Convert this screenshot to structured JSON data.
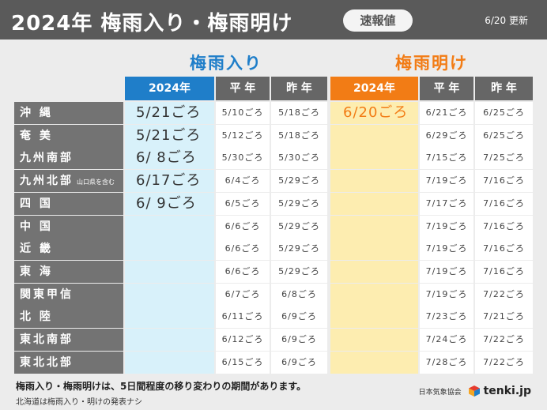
{
  "header": {
    "title": "2024年 梅雨入り・梅雨明け",
    "badge": "速報値",
    "updated": "6/20 更新"
  },
  "groups": {
    "iri": {
      "title": "梅雨入り",
      "col_current": "2024年",
      "col_normal": "平 年",
      "col_last": "昨 年"
    },
    "ake": {
      "title": "梅雨明け",
      "col_current": "2024年",
      "col_normal": "平 年",
      "col_last": "昨 年"
    }
  },
  "rows": [
    {
      "region": "沖 縄",
      "sub": "",
      "iri_2024": "5/21ごろ",
      "iri_normal": "5/10ごろ",
      "iri_last": "5/18ごろ",
      "ake_2024": "6/20ごろ",
      "ake_normal": "6/21ごろ",
      "ake_last": "6/25ごろ"
    },
    {
      "region": "奄 美",
      "sub": "",
      "iri_2024": "5/21ごろ",
      "iri_normal": "5/12ごろ",
      "iri_last": "5/18ごろ",
      "ake_2024": "",
      "ake_normal": "6/29ごろ",
      "ake_last": "6/25ごろ"
    },
    {
      "region": "九州南部",
      "sub": "",
      "iri_2024": "6/ 8ごろ",
      "iri_normal": "5/30ごろ",
      "iri_last": "5/30ごろ",
      "ake_2024": "",
      "ake_normal": "7/15ごろ",
      "ake_last": "7/25ごろ"
    },
    {
      "region": "九州北部",
      "sub": "山口県を含む",
      "iri_2024": "6/17ごろ",
      "iri_normal": "6/4ごろ",
      "iri_last": "5/29ごろ",
      "ake_2024": "",
      "ake_normal": "7/19ごろ",
      "ake_last": "7/16ごろ"
    },
    {
      "region": "四 国",
      "sub": "",
      "iri_2024": "6/ 9ごろ",
      "iri_normal": "6/5ごろ",
      "iri_last": "5/29ごろ",
      "ake_2024": "",
      "ake_normal": "7/17ごろ",
      "ake_last": "7/16ごろ"
    },
    {
      "region": "中 国",
      "sub": "",
      "iri_2024": "",
      "iri_normal": "6/6ごろ",
      "iri_last": "5/29ごろ",
      "ake_2024": "",
      "ake_normal": "7/19ごろ",
      "ake_last": "7/16ごろ"
    },
    {
      "region": "近 畿",
      "sub": "",
      "iri_2024": "",
      "iri_normal": "6/6ごろ",
      "iri_last": "5/29ごろ",
      "ake_2024": "",
      "ake_normal": "7/19ごろ",
      "ake_last": "7/16ごろ"
    },
    {
      "region": "東 海",
      "sub": "",
      "iri_2024": "",
      "iri_normal": "6/6ごろ",
      "iri_last": "5/29ごろ",
      "ake_2024": "",
      "ake_normal": "7/19ごろ",
      "ake_last": "7/16ごろ"
    },
    {
      "region": "関東甲信",
      "sub": "",
      "iri_2024": "",
      "iri_normal": "6/7ごろ",
      "iri_last": "6/8ごろ",
      "ake_2024": "",
      "ake_normal": "7/19ごろ",
      "ake_last": "7/22ごろ"
    },
    {
      "region": "北 陸",
      "sub": "",
      "iri_2024": "",
      "iri_normal": "6/11ごろ",
      "iri_last": "6/9ごろ",
      "ake_2024": "",
      "ake_normal": "7/23ごろ",
      "ake_last": "7/21ごろ"
    },
    {
      "region": "東北南部",
      "sub": "",
      "iri_2024": "",
      "iri_normal": "6/12ごろ",
      "iri_last": "6/9ごろ",
      "ake_2024": "",
      "ake_normal": "7/24ごろ",
      "ake_last": "7/22ごろ"
    },
    {
      "region": "東北北部",
      "sub": "",
      "iri_2024": "",
      "iri_normal": "6/15ごろ",
      "iri_last": "6/9ごろ",
      "ake_2024": "",
      "ake_normal": "7/28ごろ",
      "ake_last": "7/22ごろ"
    }
  ],
  "notes": {
    "line1": "梅雨入り・梅雨明けは、5日間程度の移り変わりの期間があります。",
    "line2": "北海道は梅雨入り・明けの発表ナシ"
  },
  "footer": {
    "source": "日本気象協会",
    "brand": "tenki.jp"
  },
  "colors": {
    "blue": "#1f7ec9",
    "orange": "#f27c15",
    "iri_fill": "#d8f1fa",
    "ake_fill": "#fdedb0",
    "label_gray": "#737373"
  }
}
